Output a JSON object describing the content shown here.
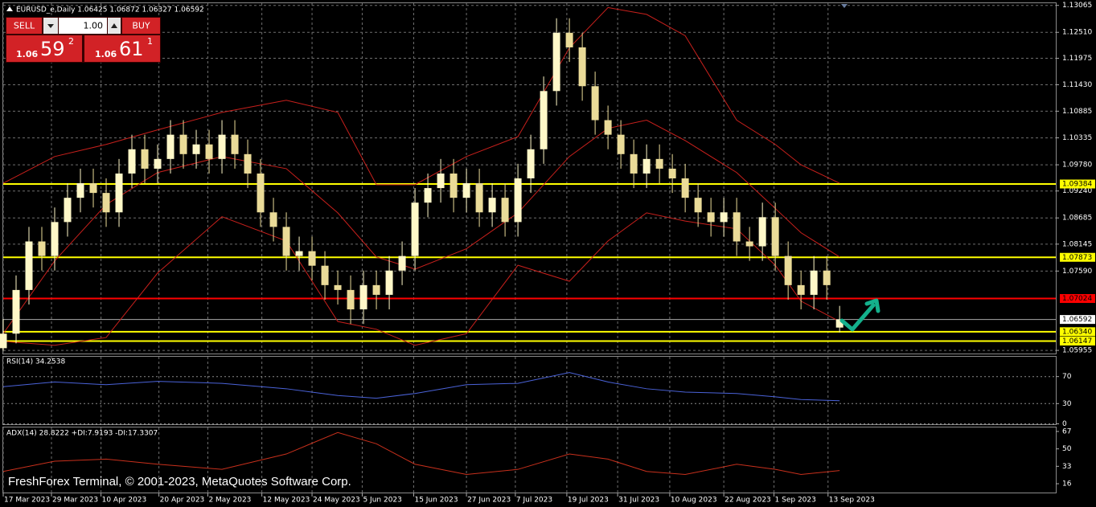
{
  "header": {
    "symbol_line": "EURUSD_e,Daily  1.06425 1.06872 1.06327 1.06592"
  },
  "trade_panel": {
    "sell": "SELL",
    "buy": "BUY",
    "lot": "1.00",
    "bid_big": "1.06",
    "bid_pips": "59",
    "bid_frac": "2",
    "ask_big": "1.06",
    "ask_pips": "61",
    "ask_frac": "1"
  },
  "watermark": "FreshForex Terminal, © 2001-2023, MetaQuotes Software Corp.",
  "chart_data": {
    "type": "candlestick",
    "colors": {
      "bull": "#fff8c8",
      "bear": "#eadb98",
      "grid": "#6e6e6e",
      "background": "#000000",
      "axis_text": "#ffffff",
      "bid": "#a8a8a8"
    },
    "grid": true,
    "xlim": [
      0,
      81.8
    ],
    "xticks": [
      {
        "value": 0,
        "label": "17 Mar 2023"
      },
      {
        "value": 3.75,
        "label": "29 Mar 2023"
      },
      {
        "value": 7.6,
        "label": "10 Apr 2023"
      },
      {
        "value": 12.1,
        "label": "20 Apr 2023"
      },
      {
        "value": 15.9,
        "label": "2 May 2023"
      },
      {
        "value": 20.1,
        "label": "12 May 2023"
      },
      {
        "value": 24,
        "label": "24 May 2023"
      },
      {
        "value": 27.9,
        "label": "5 Jun 2023"
      },
      {
        "value": 31.9,
        "label": "15 Jun 2023"
      },
      {
        "value": 36,
        "label": "27 Jun 2023"
      },
      {
        "value": 39.8,
        "label": "7 Jul 2023"
      },
      {
        "value": 43.8,
        "label": "19 Jul 2023"
      },
      {
        "value": 47.75,
        "label": "31 Jul 2023"
      },
      {
        "value": 51.8,
        "label": "10 Aug 2023"
      },
      {
        "value": 56,
        "label": "22 Aug 2023"
      },
      {
        "value": 59.9,
        "label": "1 Sep 2023"
      },
      {
        "value": 64.1,
        "label": "13 Sep 2023"
      }
    ],
    "ylim": [
      1.0589,
      1.1311
    ],
    "yticks": [
      1.13065,
      {
        "value": 1.1251,
        "label": "1.12510"
      },
      1.11975,
      {
        "value": 1.1143,
        "label": "1.11430"
      },
      1.10885,
      1.10335,
      {
        "value": 1.0978,
        "label": "1.09780"
      },
      {
        "value": 1.0924,
        "label": "1.09240"
      },
      1.08685,
      1.08145,
      {
        "value": 1.0759,
        "label": "1.07590"
      },
      1.05955
    ],
    "open": [
      1.06,
      1.063,
      1.072,
      1.082,
      1.079,
      1.086,
      1.091,
      1.094,
      1.092,
      1.088,
      1.096,
      1.101,
      1.097,
      1.099,
      1.104,
      1.1,
      1.102,
      1.099,
      1.104,
      1.1,
      1.096,
      1.088,
      1.085,
      1.079,
      1.08,
      1.077,
      1.073,
      1.072,
      1.068,
      1.073,
      1.071,
      1.076,
      1.079,
      1.09,
      1.093,
      1.096,
      1.091,
      1.094,
      1.088,
      1.091,
      1.086,
      1.095,
      1.101,
      1.113,
      1.125,
      1.122,
      1.114,
      1.107,
      1.104,
      1.1,
      1.096,
      1.099,
      1.097,
      1.095,
      1.091,
      1.088,
      1.086,
      1.088,
      1.082,
      1.081,
      1.087,
      1.079,
      1.073,
      1.071,
      1.076,
      1.06425
    ],
    "high": [
      1.066,
      1.075,
      1.085,
      1.085,
      1.089,
      1.094,
      1.097,
      1.097,
      1.095,
      1.099,
      1.104,
      1.104,
      1.102,
      1.107,
      1.107,
      1.105,
      1.105,
      1.107,
      1.107,
      1.103,
      1.099,
      1.091,
      1.088,
      1.083,
      1.083,
      1.08,
      1.076,
      1.075,
      1.076,
      1.076,
      1.079,
      1.082,
      1.093,
      1.096,
      1.099,
      1.099,
      1.097,
      1.097,
      1.094,
      1.094,
      1.098,
      1.104,
      1.116,
      1.128,
      1.128,
      1.125,
      1.117,
      1.11,
      1.107,
      1.103,
      1.102,
      1.102,
      1.1,
      1.098,
      1.094,
      1.091,
      1.091,
      1.091,
      1.085,
      1.09,
      1.09,
      1.082,
      1.076,
      1.079,
      1.079,
      1.06872
    ],
    "low": [
      1.0595,
      1.061,
      1.069,
      1.076,
      1.076,
      1.083,
      1.088,
      1.089,
      1.085,
      1.085,
      1.093,
      1.094,
      1.094,
      1.096,
      1.097,
      1.097,
      1.096,
      1.096,
      1.097,
      1.093,
      1.085,
      1.082,
      1.076,
      1.076,
      1.074,
      1.07,
      1.069,
      1.065,
      1.065,
      1.068,
      1.068,
      1.073,
      1.076,
      1.087,
      1.09,
      1.088,
      1.088,
      1.085,
      1.085,
      1.083,
      1.083,
      1.092,
      1.098,
      1.11,
      1.119,
      1.111,
      1.104,
      1.101,
      1.097,
      1.093,
      1.093,
      1.094,
      1.092,
      1.088,
      1.085,
      1.083,
      1.083,
      1.079,
      1.078,
      1.078,
      1.076,
      1.07,
      1.068,
      1.068,
      1.07,
      1.06327
    ],
    "close": [
      1.063,
      1.072,
      1.082,
      1.079,
      1.086,
      1.091,
      1.094,
      1.092,
      1.088,
      1.096,
      1.101,
      1.097,
      1.099,
      1.104,
      1.1,
      1.102,
      1.099,
      1.104,
      1.1,
      1.096,
      1.088,
      1.085,
      1.079,
      1.08,
      1.077,
      1.073,
      1.072,
      1.068,
      1.073,
      1.071,
      1.076,
      1.079,
      1.09,
      1.093,
      1.096,
      1.091,
      1.094,
      1.088,
      1.091,
      1.086,
      1.095,
      1.101,
      1.113,
      1.125,
      1.122,
      1.114,
      1.107,
      1.104,
      1.1,
      1.096,
      1.099,
      1.097,
      1.095,
      1.091,
      1.088,
      1.086,
      1.088,
      1.082,
      1.081,
      1.087,
      1.079,
      1.073,
      1.071,
      1.076,
      1.073,
      1.06592
    ],
    "levels": [
      {
        "price": 1.09384,
        "color": "#ffff00"
      },
      {
        "price": 1.07873,
        "color": "#ffff00"
      },
      {
        "price": 1.07024,
        "color": "#ff0000"
      },
      {
        "price": {
          "value": 1.0634,
          "label": "1.06340"
        },
        "color": "#ffff00"
      },
      {
        "price": 1.06147,
        "color": "#ffff00"
      }
    ],
    "bands": {
      "color": "#c8201c",
      "x": [
        0,
        4,
        8,
        12,
        17,
        22,
        26,
        29,
        32,
        36,
        40,
        44,
        47,
        50,
        53,
        57,
        60,
        62,
        65
      ],
      "upper": [
        1.094,
        1.0995,
        1.102,
        1.105,
        1.1086,
        1.1111,
        1.1086,
        1.0937,
        1.0937,
        1.0995,
        1.1036,
        1.1219,
        1.1302,
        1.1288,
        1.1244,
        1.107,
        1.102,
        1.0978,
        1.094
      ],
      "middle": [
        1.063,
        1.078,
        1.0896,
        1.0962,
        1.0995,
        1.097,
        1.0879,
        1.0788,
        1.0763,
        1.0805,
        1.0879,
        1.0995,
        1.1053,
        1.107,
        1.1028,
        1.0962,
        1.0888,
        1.0838,
        1.0788
      ],
      "lower": [
        1.0614,
        1.0606,
        1.0622,
        1.0755,
        1.0871,
        1.0821,
        1.0655,
        1.0639,
        1.0606,
        1.063,
        1.0771,
        1.0738,
        1.0821,
        1.0879,
        1.0862,
        1.0846,
        1.0771,
        1.0697,
        1.0655
      ]
    }
  },
  "rsi_panel": {
    "label": "RSI(14) 34.2538",
    "color": "#4a62d8",
    "ylim": [
      -0.6,
      99.4
    ],
    "yticks": [
      70,
      30,
      0
    ],
    "values": [
      55,
      62,
      58,
      63,
      60,
      52,
      42,
      38,
      45,
      58,
      60,
      76,
      62,
      52,
      47,
      45,
      40,
      36,
      34.2538
    ]
  },
  "adx_panel": {
    "label": "ADX(14) 28.8222 +DI:7.9193 -DI:17.3307",
    "color": "#c8301c",
    "ylim": [
      7.4,
      70.9
    ],
    "yticks": [
      67,
      50,
      33,
      16
    ],
    "values": [
      28,
      38,
      40,
      35,
      30,
      45,
      66,
      55,
      35,
      25,
      30,
      45,
      40,
      28,
      25,
      35,
      30,
      25,
      28.8222
    ]
  }
}
